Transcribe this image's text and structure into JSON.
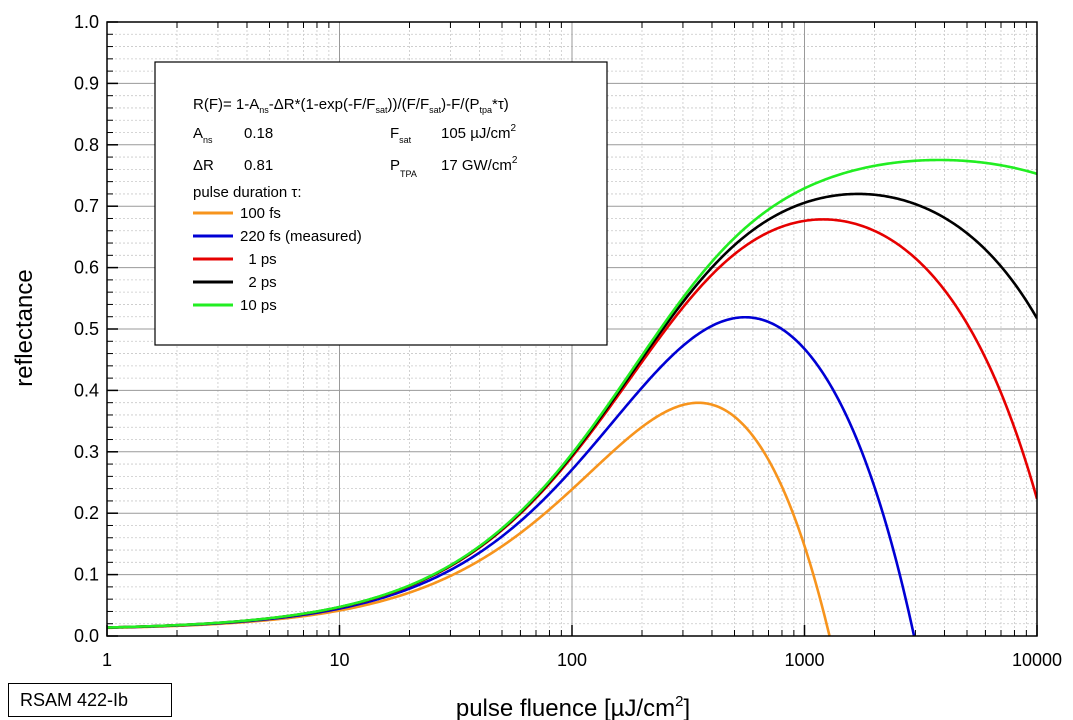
{
  "chart_data": {
    "type": "line",
    "x_scale": "log",
    "xlim": [
      1,
      10000
    ],
    "ylim": [
      0.0,
      1.0
    ],
    "grid": true,
    "xlabel": "pulse fluence [µJ/cm²]",
    "xlabel_main": "pulse fluence [µJ/cm",
    "xlabel_sup": "2",
    "xlabel_tail": "]",
    "ylabel": "reflectance",
    "x_ticks": [
      "1",
      "10",
      "100",
      "1000",
      "10000"
    ],
    "y_ticks": [
      "0.0",
      "0.1",
      "0.2",
      "0.3",
      "0.4",
      "0.5",
      "0.6",
      "0.7",
      "0.8",
      "0.9",
      "1.0"
    ],
    "legend_position": "top-left",
    "model": {
      "formula": "R(F)= 1-Ans-ΔR*(1-exp(-F/Fsat))/(F/Fsat)-F/(Ptpa*τ)",
      "A_ns": 0.18,
      "delta_R": 0.81,
      "F_sat_uJ_per_cm2": 105,
      "P_TPA_GW_per_cm2": 17
    },
    "legend_box": {
      "formula_parts": {
        "p1": "R(F)= 1-A",
        "s1": "ns",
        "p2": "-ΔR*(1-exp(-F/F",
        "s2": "sat",
        "p3": "))/(F/F",
        "s3": "sat",
        "p4": ")-F/(P",
        "s4": "tpa",
        "p5": "*τ)"
      },
      "params": [
        {
          "name": "A",
          "sub": "ns",
          "value": "0.18"
        },
        {
          "name": "ΔR",
          "sub": "",
          "value": "0.81"
        }
      ],
      "params_right": [
        {
          "name": "F",
          "sub": "sat",
          "value": "105 µJ/cm",
          "sup": "2"
        },
        {
          "name": "P",
          "sub": "TPA",
          "value": "17  GW/cm",
          "sup": "2"
        }
      ],
      "pulse_heading": "pulse duration τ:"
    },
    "series": [
      {
        "name": "100 fs",
        "tau_fs": 100,
        "color": "#f7941d"
      },
      {
        "name": "220 fs (measured)",
        "tau_fs": 220,
        "color": "#0000d4"
      },
      {
        "name": "  1 ps",
        "tau_fs": 1000,
        "color": "#e60000"
      },
      {
        "name": "  2 ps",
        "tau_fs": 2000,
        "color": "#000000"
      },
      {
        "name": "10 ps",
        "tau_fs": 10000,
        "color": "#22ee22"
      }
    ]
  },
  "sample_label": "RSAM 422-Ib"
}
